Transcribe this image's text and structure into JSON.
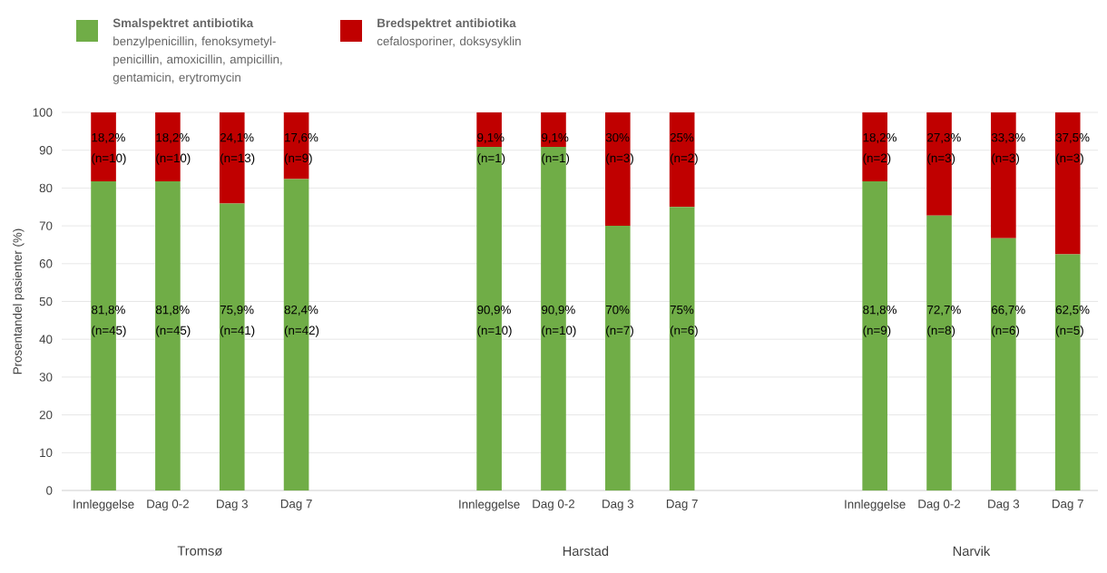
{
  "chart_data": {
    "type": "bar",
    "stacked": true,
    "ylabel": "Prosentandel pasienter (%)",
    "categories": [
      "Innleggelse",
      "Dag 0-2",
      "Dag 3",
      "Dag 7",
      null,
      null,
      "Innleggelse",
      "Dag 0-2",
      "Dag 3",
      "Dag 7",
      null,
      null,
      "Innleggelse",
      "Dag 0-2",
      "Dag 3",
      "Dag 7"
    ],
    "series": [
      {
        "name": "**Smalspektret antibiotika** benzylpenicillin, fenoksymetyl-penicillin, amoxicillin, ampicillin, gentamicin, erytromycin",
        "color": "#70ad47",
        "values": [
          81.8,
          81.8,
          75.9,
          82.4,
          null,
          null,
          90.9,
          90.9,
          70,
          75,
          null,
          null,
          81.8,
          72.7,
          66.7,
          62.5
        ],
        "value_labels": [
          "81,8% (n=45)",
          "81,8% (n=45)",
          "75,9% (n=41)",
          "82,4% (n=42)",
          null,
          null,
          "90,9% (n=10)",
          "90,9% (n=10)",
          "70% (n=7)",
          "75% (n=6)",
          null,
          null,
          "81,8% (n=9)",
          "72,7% (n=8)",
          "66,7% (n=6)",
          "62,5% (n=5)"
        ]
      },
      {
        "name": "**Bredspektret antibiotika** cefalosporiner, doksysyklin",
        "color": "#c00000",
        "values": [
          18.2,
          18.2,
          24.1,
          17.6,
          null,
          null,
          9.1,
          9.1,
          30,
          25,
          null,
          null,
          18.2,
          27.3,
          33.3,
          37.5
        ],
        "value_labels": [
          "18,2% (n=10)",
          "18,2% (n=10)",
          "24,1% (n=13)",
          "17,6% (n=9)",
          null,
          null,
          "9,1% (n=1)",
          "9,1% (n=1)",
          "30% (n=3)",
          "25% (n=2)",
          null,
          null,
          "18,2% (n=2)",
          "27,3% (n=3)",
          "33,3% (n=3)",
          "37,5% (n=3)"
        ]
      }
    ],
    "annotations": [
      "Tromsø",
      "Harstad",
      "Narvik"
    ],
    "ylim": [
      0,
      100
    ],
    "yticks": [
      0,
      10,
      20,
      30,
      40,
      50,
      60,
      70,
      80,
      90,
      100
    ],
    "grid": "y",
    "legend": "top left"
  }
}
